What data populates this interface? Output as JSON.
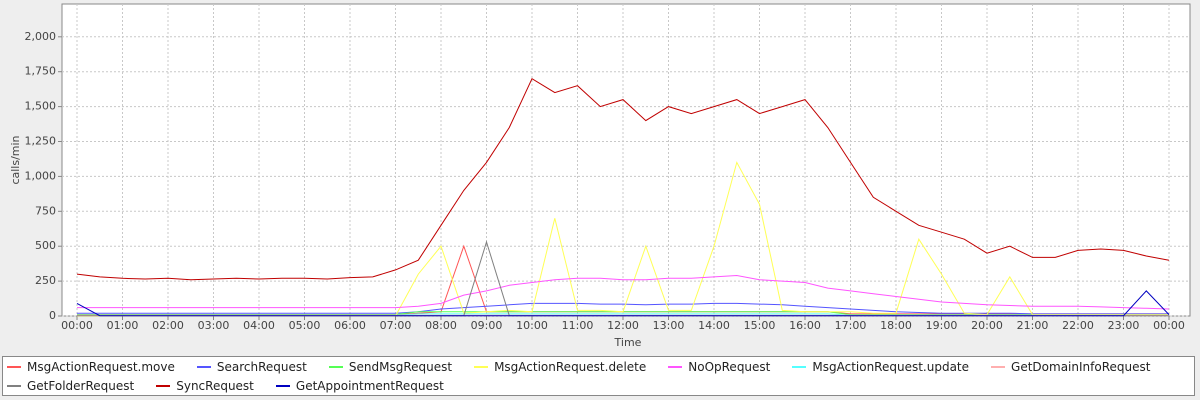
{
  "chart_data": {
    "type": "line",
    "xlabel": "Time",
    "ylabel": "calls/min",
    "categories": [
      "00:00",
      null,
      "01:00",
      null,
      "02:00",
      null,
      "03:00",
      null,
      "04:00",
      null,
      "05:00",
      null,
      "06:00",
      null,
      "07:00",
      null,
      "08:00",
      null,
      "09:00",
      null,
      "10:00",
      null,
      "11:00",
      null,
      "12:00",
      null,
      "13:00",
      null,
      "14:00",
      null,
      "15:00",
      null,
      "16:00",
      null,
      "17:00",
      null,
      "18:00",
      null,
      "19:00",
      null,
      "20:00",
      null,
      "21:00",
      null,
      "22:00",
      null,
      "23:00",
      null,
      "00:00"
    ],
    "ylim": [
      0,
      2235
    ],
    "yticks": [
      0,
      250,
      500,
      750,
      {
        "value": 1000,
        "label": "1,000"
      },
      {
        "value": 1250,
        "label": "1,250"
      },
      {
        "value": 1500,
        "label": "1,500"
      },
      {
        "value": 1750,
        "label": "1,750"
      },
      {
        "value": 2000,
        "label": "2,000"
      }
    ],
    "grid": true,
    "legend": "bottom",
    "series": [
      {
        "name": "MsgActionRequest.move",
        "color": "#ff5555",
        "values": [
          10,
          10,
          10,
          10,
          10,
          10,
          10,
          10,
          10,
          10,
          10,
          10,
          10,
          10,
          10,
          20,
          30,
          500,
          30,
          30,
          30,
          30,
          30,
          30,
          30,
          30,
          30,
          30,
          30,
          30,
          30,
          30,
          30,
          30,
          15,
          15,
          15,
          15,
          15,
          15,
          15,
          15,
          15,
          15,
          15,
          15,
          15,
          15,
          15
        ]
      },
      {
        "name": "SearchRequest",
        "color": "#5555ff",
        "values": [
          20,
          20,
          20,
          20,
          20,
          20,
          20,
          20,
          20,
          20,
          20,
          20,
          20,
          20,
          20,
          30,
          50,
          60,
          70,
          80,
          90,
          90,
          90,
          85,
          85,
          80,
          85,
          85,
          90,
          90,
          85,
          80,
          70,
          60,
          50,
          40,
          30,
          25,
          20,
          20,
          20,
          20,
          15,
          15,
          15,
          15,
          15,
          15,
          15
        ]
      },
      {
        "name": "SendMsgRequest",
        "color": "#55ff55",
        "values": [
          10,
          10,
          10,
          10,
          10,
          10,
          10,
          10,
          10,
          10,
          10,
          10,
          10,
          10,
          10,
          30,
          30,
          30,
          30,
          30,
          30,
          30,
          30,
          30,
          30,
          30,
          30,
          30,
          30,
          30,
          30,
          30,
          30,
          30,
          10,
          10,
          10,
          10,
          10,
          10,
          10,
          10,
          10,
          10,
          10,
          10,
          10,
          10,
          10
        ]
      },
      {
        "name": "MsgActionRequest.delete",
        "color": "#ffff55",
        "values": [
          0,
          0,
          0,
          0,
          0,
          0,
          0,
          0,
          0,
          0,
          0,
          0,
          0,
          0,
          0,
          300,
          500,
          20,
          30,
          40,
          30,
          700,
          40,
          40,
          30,
          500,
          40,
          40,
          500,
          1100,
          800,
          40,
          30,
          30,
          30,
          20,
          20,
          550,
          300,
          20,
          10,
          280,
          10,
          10,
          10,
          10,
          10,
          10,
          10
        ]
      },
      {
        "name": "NoOpRequest",
        "color": "#ff55ff",
        "values": [
          60,
          60,
          60,
          60,
          60,
          60,
          60,
          60,
          60,
          60,
          60,
          60,
          60,
          60,
          60,
          70,
          90,
          150,
          180,
          220,
          240,
          260,
          270,
          270,
          260,
          260,
          270,
          270,
          280,
          290,
          260,
          250,
          240,
          200,
          180,
          160,
          140,
          120,
          100,
          90,
          80,
          75,
          70,
          70,
          70,
          65,
          60,
          55,
          50
        ]
      },
      {
        "name": "MsgActionRequest.update",
        "color": "#55ffff",
        "values": [
          5,
          5,
          5,
          5,
          5,
          5,
          5,
          5,
          5,
          5,
          5,
          5,
          5,
          5,
          5,
          15,
          15,
          15,
          15,
          15,
          15,
          15,
          15,
          15,
          15,
          15,
          15,
          15,
          15,
          15,
          15,
          15,
          15,
          15,
          5,
          5,
          5,
          5,
          5,
          5,
          5,
          5,
          5,
          5,
          5,
          5,
          5,
          5,
          5
        ]
      },
      {
        "name": "GetDomainInfoRequest",
        "color": "#ffafaf",
        "values": [
          5,
          5,
          5,
          5,
          5,
          5,
          5,
          5,
          5,
          5,
          5,
          5,
          5,
          5,
          5,
          5,
          5,
          5,
          5,
          5,
          5,
          5,
          5,
          5,
          5,
          5,
          5,
          5,
          5,
          5,
          5,
          5,
          5,
          5,
          5,
          5,
          5,
          5,
          5,
          5,
          5,
          5,
          5,
          5,
          5,
          5,
          5,
          5,
          5
        ]
      },
      {
        "name": "GetFolderRequest",
        "color": "#808080",
        "values": [
          2,
          2,
          2,
          2,
          2,
          2,
          2,
          2,
          2,
          2,
          2,
          2,
          2,
          2,
          2,
          2,
          2,
          2,
          530,
          2,
          2,
          2,
          2,
          2,
          2,
          2,
          2,
          2,
          2,
          2,
          2,
          2,
          2,
          2,
          2,
          2,
          2,
          2,
          2,
          2,
          2,
          2,
          2,
          2,
          2,
          2,
          2,
          2,
          2
        ]
      },
      {
        "name": "SyncRequest",
        "color": "#c00000",
        "values": [
          300,
          280,
          270,
          265,
          270,
          260,
          265,
          270,
          265,
          270,
          270,
          265,
          275,
          280,
          330,
          400,
          650,
          900,
          1100,
          1350,
          1700,
          1600,
          1650,
          1500,
          1550,
          1400,
          1500,
          1450,
          1500,
          1550,
          1450,
          1500,
          1550,
          1350,
          1100,
          850,
          750,
          650,
          600,
          550,
          450,
          500,
          420,
          420,
          470,
          480,
          470,
          430,
          400
        ]
      },
      {
        "name": "GetAppointmentRequest",
        "color": "#0000c0",
        "values": [
          90,
          2,
          2,
          2,
          2,
          2,
          2,
          2,
          2,
          2,
          2,
          2,
          2,
          2,
          2,
          2,
          2,
          2,
          2,
          2,
          2,
          2,
          2,
          2,
          2,
          2,
          2,
          2,
          2,
          2,
          2,
          2,
          2,
          2,
          2,
          2,
          2,
          2,
          2,
          2,
          2,
          2,
          2,
          2,
          2,
          2,
          2,
          180,
          10
        ]
      }
    ]
  }
}
